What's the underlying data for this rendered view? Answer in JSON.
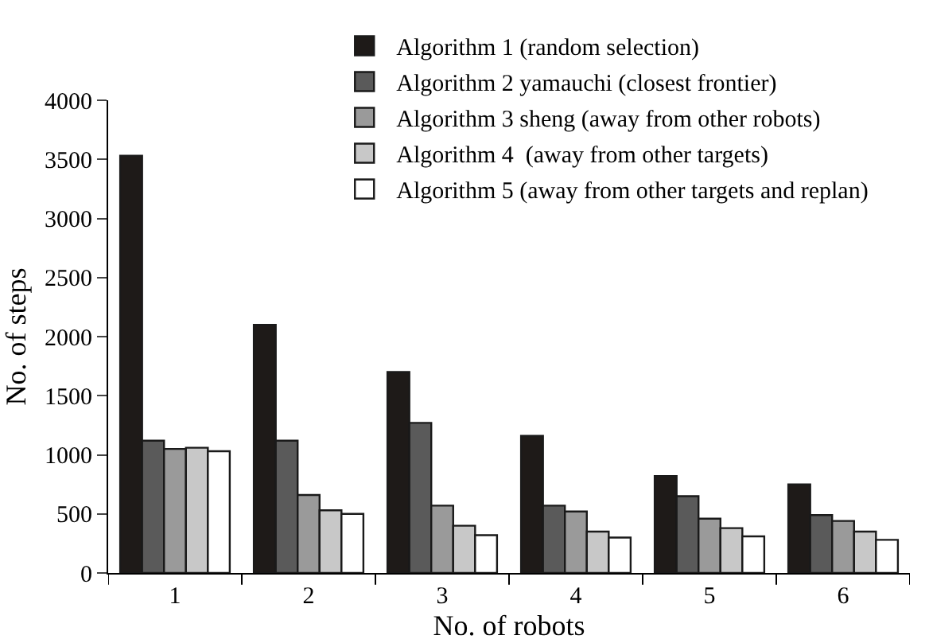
{
  "chart_data": {
    "type": "bar",
    "xlabel": "No. of robots",
    "ylabel": "No. of steps",
    "categories": [
      "1",
      "2",
      "3",
      "4",
      "5",
      "6"
    ],
    "series": [
      {
        "name": "Algorithm 1 (random selection)",
        "color": "#1e1a18",
        "values": [
          3530,
          2100,
          1700,
          1160,
          820,
          750
        ]
      },
      {
        "name": "Algorithm 2 yamauchi (closest frontier)",
        "color": "#5a5a5a",
        "values": [
          1120,
          1120,
          1270,
          570,
          650,
          490
        ]
      },
      {
        "name": "Algorithm 3 sheng (away from other robots)",
        "color": "#9a9a9a",
        "values": [
          1050,
          660,
          570,
          520,
          460,
          440
        ]
      },
      {
        "name": "Algorithm 4  (away from other targets)",
        "color": "#c8c8c8",
        "values": [
          1060,
          530,
          400,
          350,
          380,
          350
        ]
      },
      {
        "name": "Algorithm 5 (away from other targets and replan)",
        "color": "#ffffff",
        "values": [
          1030,
          500,
          320,
          300,
          310,
          280
        ]
      }
    ],
    "ylim": [
      0,
      4000
    ],
    "yticks": [
      0,
      500,
      1000,
      1500,
      2000,
      2500,
      3000,
      3500,
      4000
    ],
    "grid": false,
    "legend": "top right"
  }
}
